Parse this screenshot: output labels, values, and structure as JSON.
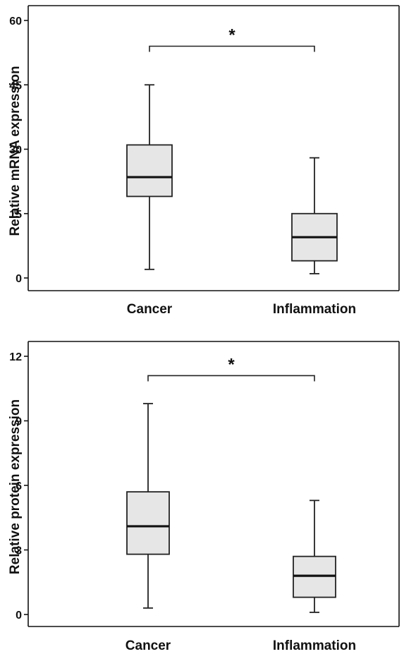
{
  "chart_data": [
    {
      "type": "box",
      "ylabel": "Relative mRNA expression",
      "ylim": [
        0,
        60
      ],
      "yticks": [
        0,
        15,
        30,
        45,
        60
      ],
      "categories": [
        "Cancer",
        "Inflammation"
      ],
      "boxes": [
        {
          "category": "Cancer",
          "min": 2,
          "q1": 19,
          "median": 23.5,
          "q3": 31,
          "max": 45
        },
        {
          "category": "Inflammation",
          "min": 1,
          "q1": 4,
          "median": 9.5,
          "q3": 15,
          "max": 28
        }
      ],
      "significance": {
        "label": "*",
        "between": [
          "Cancer",
          "Inflammation"
        ],
        "y": 54
      }
    },
    {
      "type": "box",
      "ylabel": "Relative protein expression",
      "ylim": [
        0,
        12
      ],
      "yticks": [
        0,
        3,
        6,
        9,
        12
      ],
      "categories": [
        "Cancer",
        "Inflammation"
      ],
      "boxes": [
        {
          "category": "Cancer",
          "min": 0.3,
          "q1": 2.8,
          "median": 4.1,
          "q3": 5.7,
          "max": 9.8
        },
        {
          "category": "Inflammation",
          "min": 0.1,
          "q1": 0.8,
          "median": 1.8,
          "q3": 2.7,
          "max": 5.3
        }
      ],
      "significance": {
        "label": "*",
        "between": [
          "Cancer",
          "Inflammation"
        ],
        "y": 11.1
      }
    }
  ]
}
